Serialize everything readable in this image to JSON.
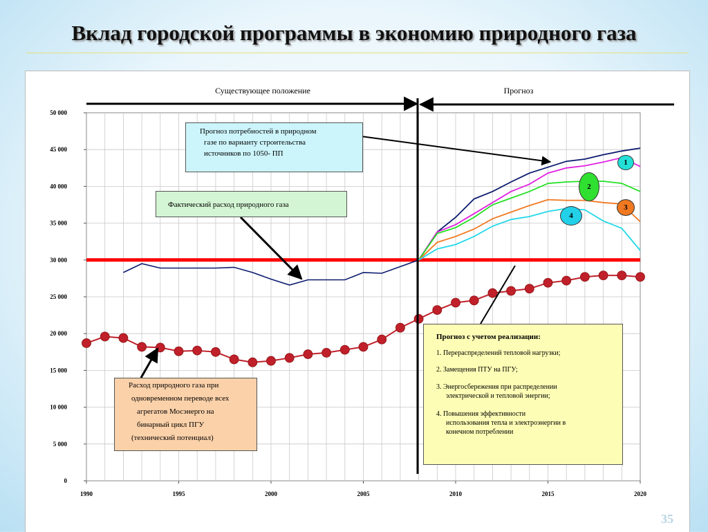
{
  "slide": {
    "title": "Вклад городской программы в экономию природного газа",
    "page_number": "35"
  },
  "sections": {
    "existing": "Существующее положение",
    "forecast": "Прогноз"
  },
  "annotations": {
    "forecast_demand": [
      "Прогноз потребностей в природном",
      "газе по варианту строительства",
      "источников по  1050- ПП"
    ],
    "actual_consumption": "Фактический расход природного газа",
    "potential": [
      "Расход природного газа при",
      "одновременном переводе всех",
      "агрегатов Мосэнерго на",
      "бинарный цикл ПГУ",
      "(технический потенциал)"
    ],
    "forecast_realization": {
      "heading": "Прогноз с учетом реализации:",
      "items": [
        [
          "1. Перераспределений тепловой нагрузки;"
        ],
        [
          "2. Замещения ПТУ на ПГУ;"
        ],
        [
          "3. Энергосбережения при распределении",
          "электрической и тепловой энергии;"
        ],
        [
          "4. Повышения эффективности",
          "использования тепла и электроэнергии в",
          "конечном потреблении"
        ]
      ]
    }
  },
  "badges": [
    "1",
    "2",
    "3",
    "4"
  ],
  "colors": {
    "actual": "#0a1a6e",
    "reference": "#ff0000",
    "potential": "#c0202a",
    "s1": "#0a1a6e",
    "s1b": "#e020e0",
    "s2": "#22e022",
    "s3": "#f07820",
    "s4": "#22d8e8",
    "badge_1": "#22e0d8",
    "badge_2": "#30e030",
    "badge_3": "#f07820",
    "badge_4": "#22d0e8"
  },
  "chart_data": {
    "type": "line",
    "x_ticks": [
      "1990",
      "1995",
      "2000",
      "2005",
      "2010",
      "2015",
      "2020"
    ],
    "y_ticks": [
      "0",
      "5 000",
      "10 000",
      "15 000",
      "20 000",
      "25 000",
      "30 000",
      "35 000",
      "40 000",
      "45 000",
      "50 000"
    ],
    "xlim": [
      1990,
      2020
    ],
    "ylim": [
      0,
      50000
    ],
    "grid": true,
    "forecast_start_year": 2008,
    "reference_level": 30000,
    "series": [
      {
        "key": "actual",
        "x": [
          1992,
          1993,
          1994,
          1995,
          1996,
          1997,
          1998,
          1999,
          2000,
          2001,
          2002,
          2003,
          2004,
          2005,
          2006,
          2007,
          2008
        ],
        "values": [
          28300,
          29500,
          28900,
          28900,
          28900,
          28900,
          29000,
          28300,
          27400,
          26600,
          27300,
          27300,
          27300,
          28300,
          28200,
          29100,
          30000
        ]
      },
      {
        "key": "potential",
        "x": [
          1990,
          1991,
          1992,
          1993,
          1994,
          1995,
          1996,
          1997,
          1998,
          1999,
          2000,
          2001,
          2002,
          2003,
          2004,
          2005,
          2006,
          2007,
          2008,
          2009,
          2010,
          2011,
          2012,
          2013,
          2014,
          2015,
          2016,
          2017,
          2018,
          2019,
          2020
        ],
        "values": [
          18700,
          19600,
          19400,
          18200,
          18100,
          17600,
          17700,
          17500,
          16500,
          16100,
          16300,
          16700,
          17200,
          17400,
          17800,
          18200,
          19200,
          20800,
          22000,
          23200,
          24200,
          24500,
          25500,
          25800,
          26100,
          26900,
          27200,
          27700,
          27900,
          27900,
          27700
        ]
      },
      {
        "key": "s1",
        "x": [
          2008,
          2009,
          2010,
          2011,
          2012,
          2013,
          2014,
          2015,
          2016,
          2017,
          2018,
          2019,
          2020
        ],
        "values": [
          30000,
          33800,
          35800,
          38300,
          39300,
          40600,
          41800,
          42600,
          43400,
          43700,
          44300,
          44800,
          45200
        ]
      },
      {
        "key": "s1b",
        "x": [
          2008,
          2009,
          2010,
          2011,
          2012,
          2013,
          2014,
          2015,
          2016,
          2017,
          2018,
          2019,
          2020
        ],
        "values": [
          30000,
          33800,
          34800,
          36300,
          37800,
          39300,
          40300,
          41800,
          42500,
          42800,
          43300,
          43900,
          42700
        ]
      },
      {
        "key": "s2",
        "x": [
          2008,
          2009,
          2010,
          2011,
          2012,
          2013,
          2014,
          2015,
          2016,
          2017,
          2018,
          2019,
          2020
        ],
        "values": [
          30000,
          33600,
          34400,
          35800,
          37500,
          38400,
          39300,
          40400,
          40600,
          40700,
          40700,
          40400,
          39300
        ]
      },
      {
        "key": "s3",
        "x": [
          2008,
          2009,
          2010,
          2011,
          2012,
          2013,
          2014,
          2015,
          2016,
          2017,
          2018,
          2019,
          2020
        ],
        "values": [
          30000,
          32400,
          33200,
          34200,
          35600,
          36500,
          37400,
          38200,
          38100,
          38100,
          37800,
          37600,
          35200
        ]
      },
      {
        "key": "s4",
        "x": [
          2008,
          2009,
          2010,
          2011,
          2012,
          2013,
          2014,
          2015,
          2016,
          2017,
          2018,
          2019,
          2020
        ],
        "values": [
          30000,
          31500,
          32100,
          33200,
          34600,
          35500,
          35900,
          36600,
          37000,
          36800,
          35300,
          34300,
          31300
        ]
      }
    ]
  }
}
